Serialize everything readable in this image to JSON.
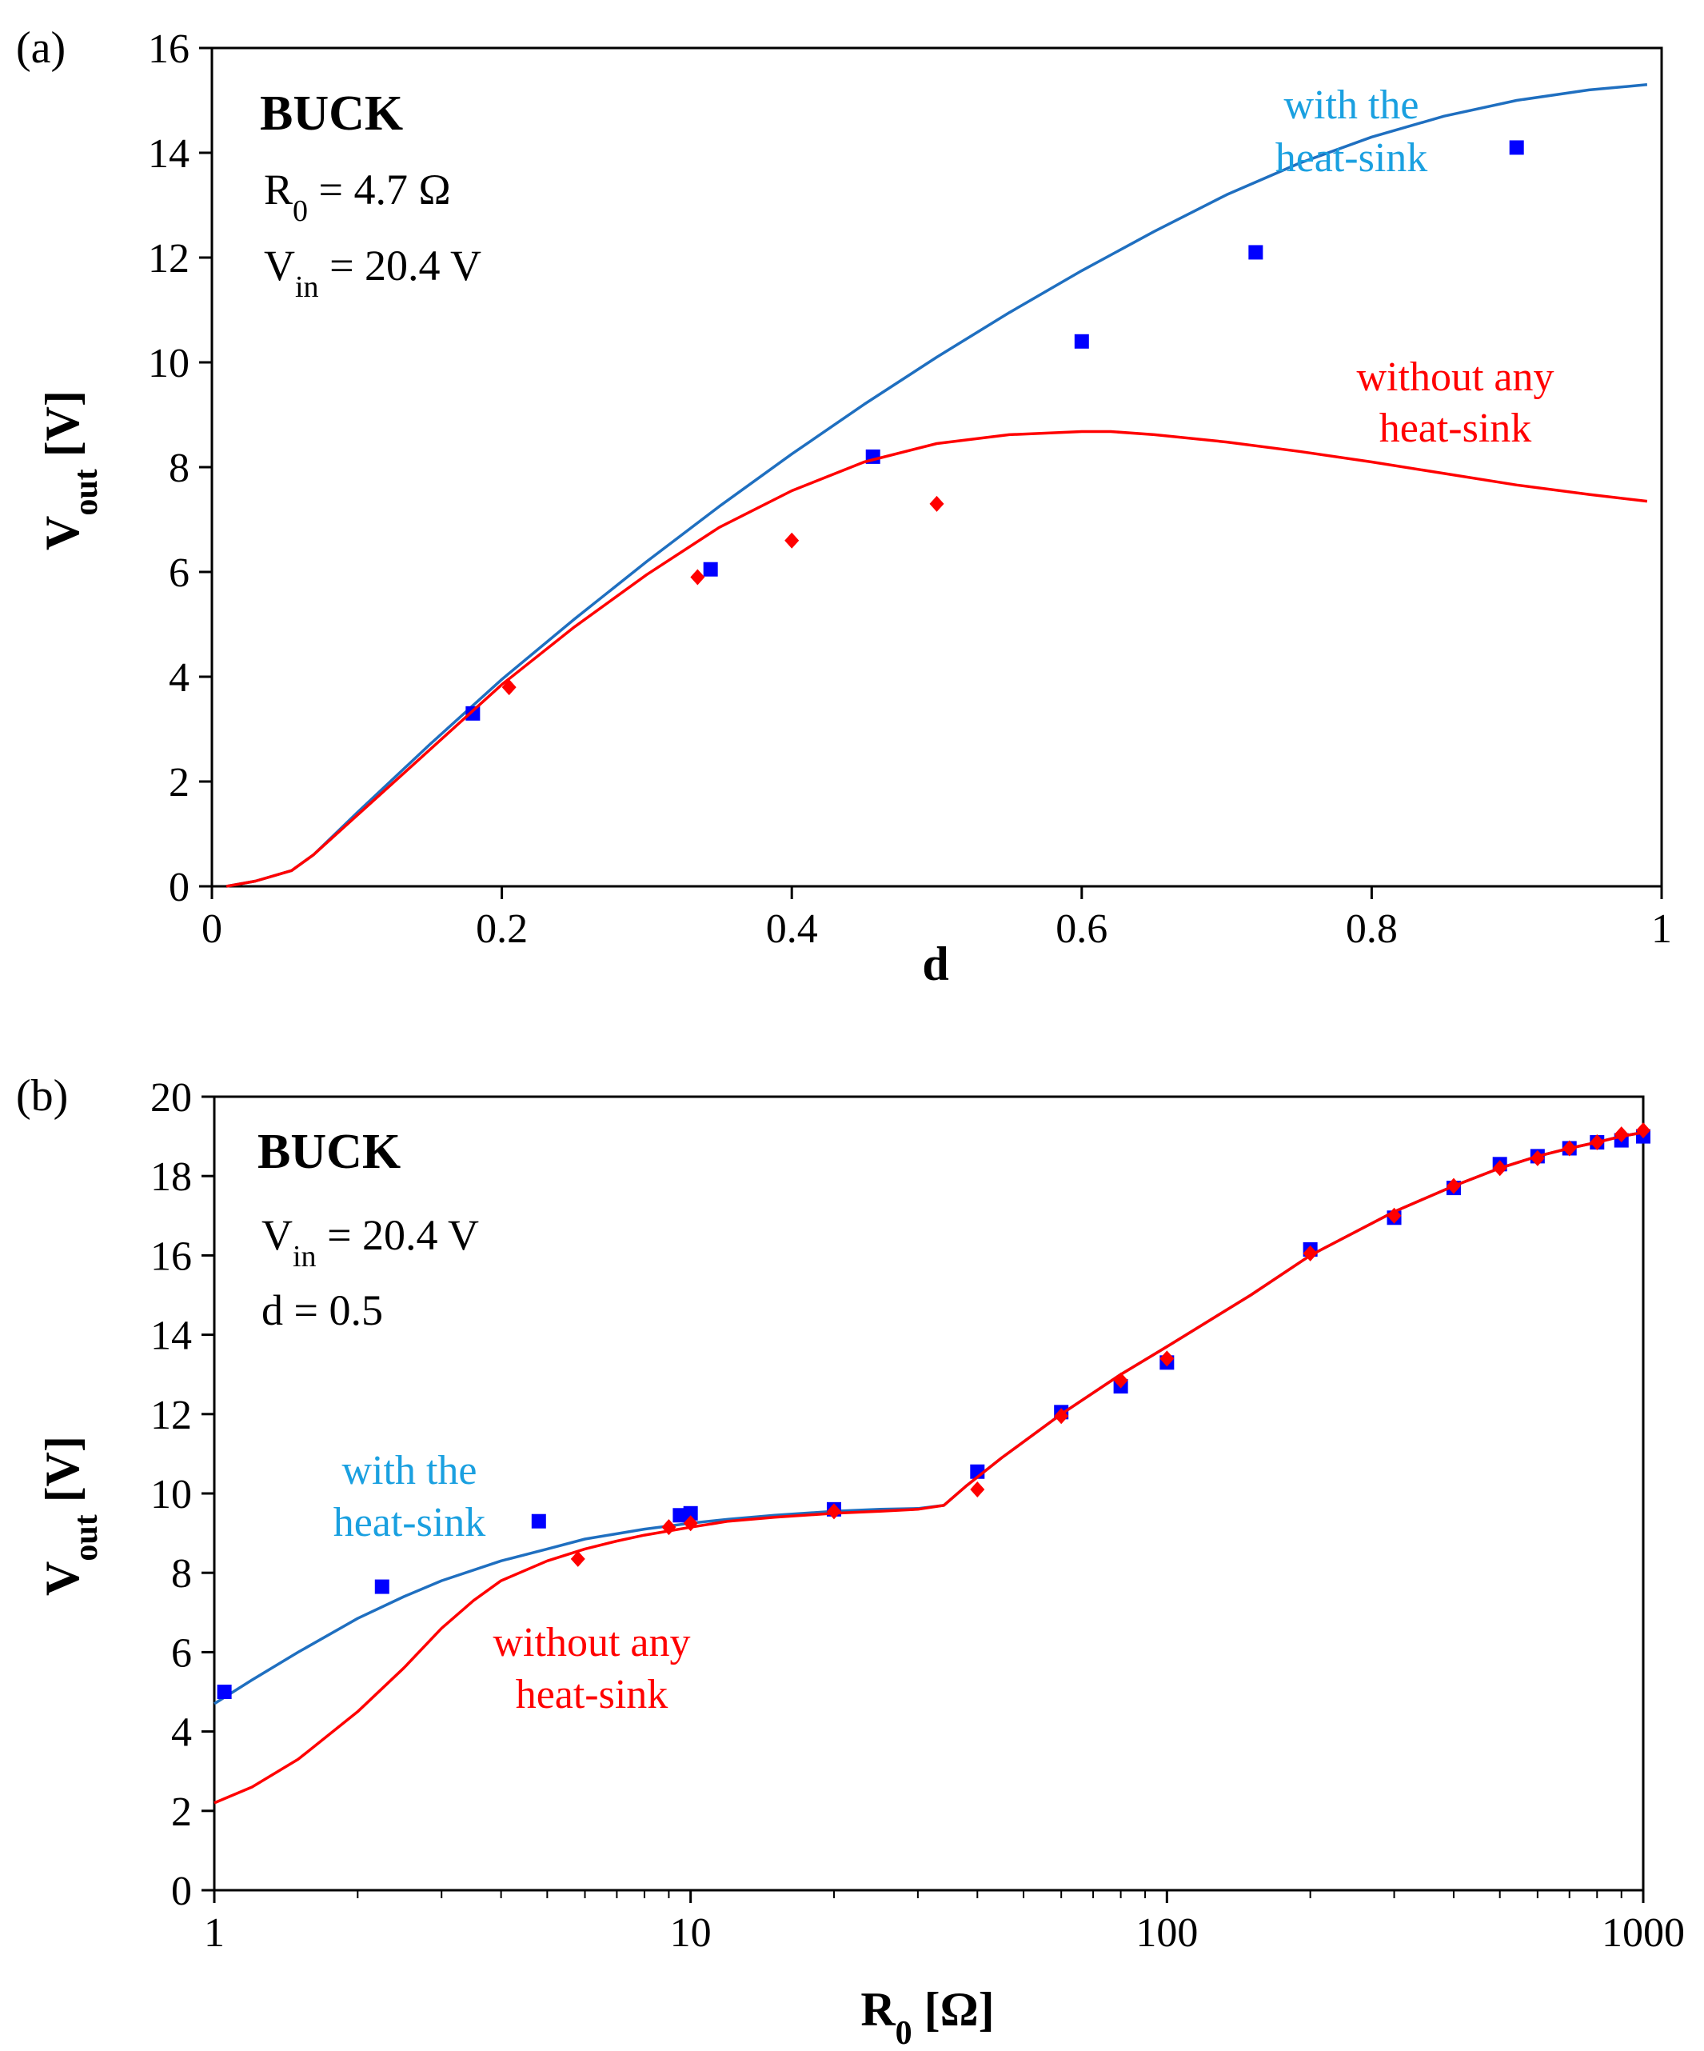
{
  "chart_data": [
    {
      "type": "scatter+line",
      "panel_label": "(a)",
      "title": "BUCK",
      "annotations": [
        {
          "main": "R",
          "sub": "0",
          "rest": " = 4.7 Ω"
        },
        {
          "main": "V",
          "sub": "in",
          "rest": " = 20.4 V"
        }
      ],
      "xlabel": "d",
      "ylabel_main": "V",
      "ylabel_sub": "out",
      "ylabel_rest": " [V]",
      "xscale": "linear",
      "xlim": [
        0,
        1
      ],
      "ylim": [
        0,
        16
      ],
      "xticks": [
        0,
        0.2,
        0.4,
        0.6,
        0.8,
        1
      ],
      "xtick_labels": [
        "0",
        "0.2",
        "0.4",
        "0.6",
        "0.8",
        "1"
      ],
      "yticks": [
        0,
        2,
        4,
        6,
        8,
        10,
        12,
        14,
        16
      ],
      "ytick_labels": [
        "0",
        "2",
        "4",
        "6",
        "8",
        "10",
        "12",
        "14",
        "16"
      ],
      "series": [
        {
          "name": "with the heat-sink",
          "label_lines": [
            "with the",
            "heat-sink"
          ],
          "color": "#1f6fc0",
          "label_color": "#1aa0e0",
          "marker_color": "#0000ff",
          "marker": "square",
          "curve": {
            "x": [
              0.01,
              0.03,
              0.055,
              0.07,
              0.1,
              0.15,
              0.2,
              0.25,
              0.3,
              0.35,
              0.4,
              0.45,
              0.5,
              0.55,
              0.6,
              0.65,
              0.7,
              0.75,
              0.8,
              0.85,
              0.9,
              0.95,
              0.99
            ],
            "y": [
              0,
              0.1,
              0.3,
              0.6,
              1.4,
              2.7,
              3.95,
              5.1,
              6.2,
              7.25,
              8.25,
              9.2,
              10.1,
              10.95,
              11.75,
              12.5,
              13.2,
              13.8,
              14.3,
              14.7,
              15.0,
              15.2,
              15.3
            ]
          },
          "points": {
            "x": [
              0.18,
              0.344,
              0.456,
              0.6,
              0.72,
              0.9
            ],
            "y": [
              3.3,
              6.05,
              8.2,
              10.4,
              12.1,
              14.1
            ]
          }
        },
        {
          "name": "without any heat-sink",
          "label_lines": [
            "without any",
            "heat-sink"
          ],
          "color": "#ff0000",
          "label_color": "#ff0000",
          "marker_color": "#ff0000",
          "marker": "diamond",
          "curve": {
            "x": [
              0.01,
              0.03,
              0.055,
              0.07,
              0.1,
              0.15,
              0.2,
              0.25,
              0.3,
              0.35,
              0.4,
              0.45,
              0.5,
              0.55,
              0.6,
              0.62,
              0.65,
              0.7,
              0.75,
              0.8,
              0.85,
              0.9,
              0.95,
              0.99
            ],
            "y": [
              0,
              0.1,
              0.3,
              0.6,
              1.35,
              2.6,
              3.85,
              4.95,
              5.95,
              6.85,
              7.55,
              8.1,
              8.45,
              8.62,
              8.68,
              8.68,
              8.62,
              8.48,
              8.3,
              8.1,
              7.88,
              7.66,
              7.48,
              7.35
            ]
          },
          "points": {
            "x": [
              0.205,
              0.335,
              0.4,
              0.5
            ],
            "y": [
              3.8,
              5.9,
              6.6,
              7.3
            ]
          }
        }
      ]
    },
    {
      "type": "scatter+line",
      "panel_label": "(b)",
      "title": "BUCK",
      "annotations": [
        {
          "main": "V",
          "sub": "in",
          "rest": " = 20.4 V"
        },
        {
          "main": "d = 0.5",
          "sub": "",
          "rest": ""
        }
      ],
      "xlabel_main": "R",
      "xlabel_sub": "0",
      "xlabel_rest": " [Ω]",
      "ylabel_main": "V",
      "ylabel_sub": "out",
      "ylabel_rest": " [V]",
      "xscale": "log",
      "xlim": [
        1,
        1000
      ],
      "ylim": [
        0,
        20
      ],
      "xticks": [
        1,
        10,
        100,
        1000
      ],
      "xtick_labels": [
        "1",
        "10",
        "100",
        "1000"
      ],
      "yticks": [
        0,
        2,
        4,
        6,
        8,
        10,
        12,
        14,
        16,
        18,
        20
      ],
      "ytick_labels": [
        "0",
        "2",
        "4",
        "6",
        "8",
        "10",
        "12",
        "14",
        "16",
        "18",
        "20"
      ],
      "series": [
        {
          "name": "with the heat-sink",
          "label_lines": [
            "with the",
            "heat-sink"
          ],
          "color": "#1f6fc0",
          "label_color": "#1aa0e0",
          "marker_color": "#0000ff",
          "marker": "square",
          "curve": {
            "x": [
              1.0,
              1.2,
              1.5,
              2,
              2.5,
              3,
              4,
              5,
              6,
              8,
              10,
              12,
              15,
              20,
              25,
              30,
              34,
              38,
              45,
              60,
              80,
              100,
              150,
              200,
              300,
              400,
              500,
              600,
              700,
              800,
              900,
              1000
            ],
            "y": [
              4.7,
              5.3,
              6.0,
              6.85,
              7.4,
              7.8,
              8.3,
              8.6,
              8.85,
              9.1,
              9.25,
              9.35,
              9.45,
              9.55,
              9.6,
              9.62,
              9.7,
              10.2,
              10.9,
              12.0,
              13.0,
              13.7,
              15.0,
              16.0,
              17.1,
              17.75,
              18.2,
              18.5,
              18.7,
              18.85,
              19.0,
              19.1
            ]
          },
          "points": {
            "x": [
              1.05,
              2.25,
              4.8,
              9.5,
              10,
              20,
              40,
              60,
              80,
              100,
              200,
              300,
              400,
              500,
              600,
              700,
              800,
              900,
              1000
            ],
            "y": [
              5.0,
              7.65,
              9.3,
              9.45,
              9.5,
              9.6,
              10.55,
              12.05,
              12.7,
              13.3,
              16.15,
              16.95,
              17.7,
              18.3,
              18.5,
              18.7,
              18.85,
              18.9,
              19.0
            ]
          }
        },
        {
          "name": "without any heat-sink",
          "label_lines": [
            "without any",
            "heat-sink"
          ],
          "color": "#ff0000",
          "label_color": "#ff0000",
          "marker_color": "#ff0000",
          "marker": "diamond",
          "curve": {
            "x": [
              1.0,
              1.2,
              1.5,
              2,
              2.5,
              3,
              3.5,
              4,
              5,
              6,
              7,
              8,
              10,
              12,
              15,
              20,
              25,
              30,
              34,
              38,
              45,
              60,
              80,
              100,
              150,
              200,
              300,
              400,
              500,
              600,
              700,
              800,
              900,
              1000
            ],
            "y": [
              2.2,
              2.6,
              3.3,
              4.5,
              5.6,
              6.6,
              7.3,
              7.8,
              8.3,
              8.6,
              8.8,
              8.95,
              9.15,
              9.3,
              9.4,
              9.5,
              9.55,
              9.6,
              9.7,
              10.2,
              10.9,
              12.0,
              13.0,
              13.7,
              15.0,
              16.0,
              17.1,
              17.75,
              18.2,
              18.5,
              18.7,
              18.85,
              19.0,
              19.1
            ]
          },
          "points": {
            "x": [
              5.8,
              9,
              10,
              20,
              40,
              60,
              80,
              100,
              200,
              300,
              400,
              500,
              600,
              700,
              800,
              900,
              1000
            ],
            "y": [
              8.35,
              9.15,
              9.25,
              9.55,
              10.1,
              11.95,
              12.85,
              13.4,
              16.05,
              17.0,
              17.75,
              18.2,
              18.45,
              18.7,
              18.85,
              19.05,
              19.15
            ]
          }
        }
      ]
    }
  ]
}
